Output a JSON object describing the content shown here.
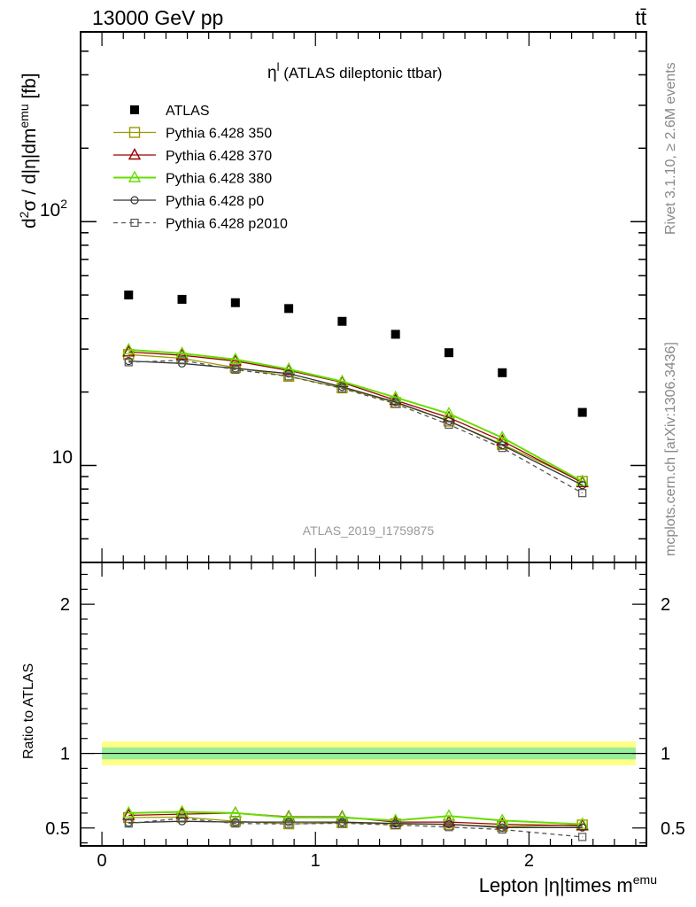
{
  "header": {
    "left": "13000 GeV pp",
    "right": "tt̄"
  },
  "side_labels": {
    "rivet": "Rivet 3.1.10, ≥ 2.6M events",
    "mcplots": "mcplots.cern.ch [arXiv:1306.3436]"
  },
  "watermark": "ATLAS_2019_I1759875",
  "chart_data": [
    {
      "type": "scatter",
      "title": "η",
      "title_sup": "l",
      "title_rest": " (ATLAS dileptonic ttbar)",
      "ylabel": "d²σ / d|η|dm^emu [fb]",
      "yscale": "log",
      "ylim": [
        4,
        600
      ],
      "xlim": [
        -0.1,
        2.55
      ],
      "ytick_labels": {
        "major": [
          10,
          100
        ],
        "text_10": "10",
        "text_100_base": "10",
        "text_100_exp": "2"
      },
      "legend_placement": "top-left",
      "x": [
        0.125,
        0.375,
        0.625,
        0.875,
        1.125,
        1.375,
        1.625,
        1.875,
        2.25
      ],
      "series": [
        {
          "name": "ATLAS",
          "marker": "filled-square",
          "color": "#000000",
          "dash": false,
          "values": [
            50,
            48,
            46.5,
            44,
            39,
            34.5,
            29,
            24,
            16.5
          ]
        },
        {
          "name": "Pythia 6.428 350",
          "marker": "open-square",
          "color": "#999900",
          "dash": false,
          "values": [
            28.5,
            27.5,
            25.2,
            23.2,
            20.8,
            18.1,
            15.2,
            12.2,
            8.6
          ]
        },
        {
          "name": "Pythia 6.428 370",
          "marker": "open-triangle",
          "color": "#990000",
          "dash": false,
          "values": [
            29.2,
            28.3,
            26.8,
            24.5,
            21.9,
            18.5,
            15.7,
            12.6,
            8.5
          ]
        },
        {
          "name": "Pythia 6.428 380",
          "marker": "open-triangle",
          "color": "#66dd00",
          "dash": false,
          "values": [
            29.8,
            28.8,
            27.2,
            24.8,
            22.1,
            19.0,
            16.3,
            13.0,
            8.6
          ]
        },
        {
          "name": "Pythia 6.428 p0",
          "marker": "open-circle",
          "color": "#333333",
          "dash": false,
          "values": [
            26.8,
            26.2,
            25.0,
            23.8,
            21.0,
            18.2,
            15.2,
            12.1,
            8.3
          ]
        },
        {
          "name": "Pythia 6.428 p2010",
          "marker": "open-square-small",
          "color": "#555555",
          "dash": true,
          "values": [
            26.5,
            27.0,
            24.7,
            23.2,
            20.7,
            17.9,
            14.7,
            11.8,
            7.7
          ]
        }
      ]
    },
    {
      "type": "scatter",
      "ylabel": "Ratio to ATLAS",
      "xlabel": "Lepton |η|times m",
      "xlabel_sup": "emu",
      "ylim": [
        0.38,
        2.28
      ],
      "xlim": [
        -0.1,
        2.55
      ],
      "x_ticks": [
        0,
        1,
        2
      ],
      "x_tick_labels": [
        "0",
        "1",
        "2"
      ],
      "y_ticks": [
        0.5,
        1,
        2
      ],
      "y_tick_labels": [
        "0.5",
        "1",
        "2"
      ],
      "band": {
        "inner": [
          0.96,
          1.04
        ],
        "outer": [
          0.92,
          1.08
        ],
        "inner_color": "#99ee99",
        "outer_color": "#ffff88",
        "x_range": [
          0,
          2.5
        ]
      },
      "reference": 1,
      "x": [
        0.125,
        0.375,
        0.625,
        0.875,
        1.125,
        1.375,
        1.625,
        1.875,
        2.25
      ],
      "series": [
        {
          "name": "Pythia 6.428 350",
          "marker": "open-square",
          "color": "#999900",
          "dash": false,
          "values": [
            0.57,
            0.573,
            0.545,
            0.528,
            0.535,
            0.527,
            0.523,
            0.51,
            0.52
          ]
        },
        {
          "name": "Pythia 6.428 370",
          "marker": "open-triangle",
          "color": "#990000",
          "dash": false,
          "values": [
            0.585,
            0.593,
            0.6,
            0.575,
            0.575,
            0.54,
            0.54,
            0.525,
            0.515
          ]
        },
        {
          "name": "Pythia 6.428 380",
          "marker": "open-triangle",
          "color": "#66dd00",
          "dash": false,
          "values": [
            0.6,
            0.608,
            0.6,
            0.57,
            0.57,
            0.55,
            0.58,
            0.55,
            0.525
          ]
        },
        {
          "name": "Pythia 6.428 p0",
          "marker": "open-circle",
          "color": "#333333",
          "dash": false,
          "values": [
            0.535,
            0.545,
            0.54,
            0.54,
            0.54,
            0.53,
            0.525,
            0.503,
            0.503
          ]
        },
        {
          "name": "Pythia 6.428 p2010",
          "marker": "open-square-small",
          "color": "#555555",
          "dash": true,
          "values": [
            0.53,
            0.565,
            0.53,
            0.527,
            0.532,
            0.52,
            0.506,
            0.49,
            0.44
          ]
        }
      ]
    }
  ]
}
